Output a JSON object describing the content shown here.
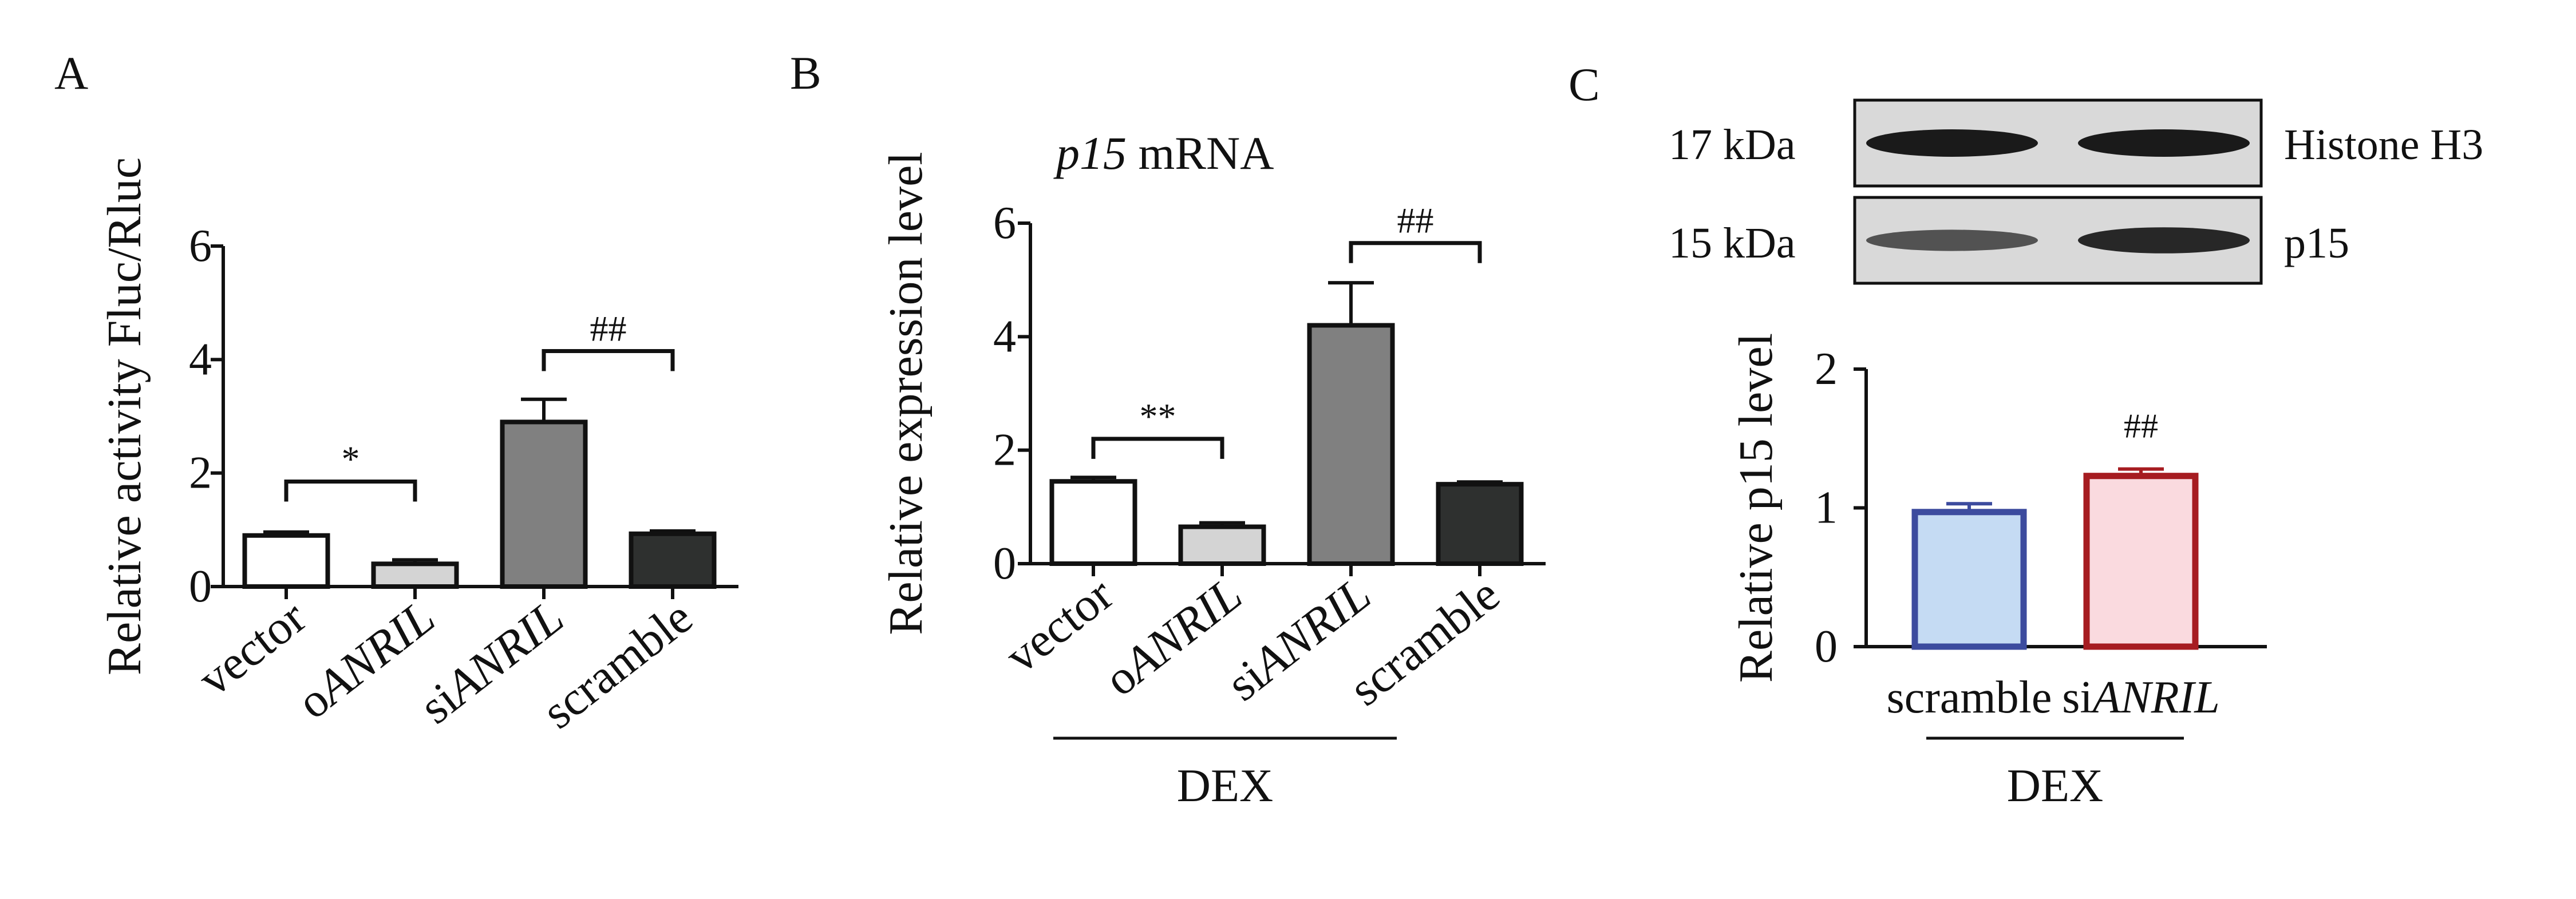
{
  "colors": {
    "axis": "#111111",
    "panelA": [
      "#ffffff",
      "#d4d4d4",
      "#808080",
      "#2e302f"
    ],
    "panelB": [
      "#ffffff",
      "#d4d4d4",
      "#808080",
      "#2e302f"
    ],
    "panelC_fill": [
      "#c5dbf3",
      "#fadadf"
    ],
    "panelC_edge": [
      "#3c4b9e",
      "#a61c21"
    ],
    "blot_bg": "#d9d9d9",
    "band": "#1a1a1a"
  },
  "panels": {
    "A": {
      "letter": "A"
    },
    "B": {
      "letter": "B",
      "title_italic": "p15",
      "title_rest": " mRNA",
      "group_label": "DEX"
    },
    "C": {
      "letter": "C",
      "group_label": "DEX",
      "blot": {
        "rows": [
          {
            "size": "17 kDa",
            "protein": "Histone H3",
            "intensity": [
              1.0,
              1.0
            ]
          },
          {
            "size": "15 kDa",
            "protein": "p15",
            "intensity": [
              0.55,
              0.9
            ]
          }
        ]
      }
    }
  },
  "chart_data": [
    {
      "type": "bar",
      "panel": "A",
      "categories": [
        {
          "prefix": "",
          "italic": "",
          "text": "vector"
        },
        {
          "prefix": "o",
          "italic": "ANRIL",
          "text": "oANRIL"
        },
        {
          "prefix": "si",
          "italic": "ANRIL",
          "text": "siANRIL"
        },
        {
          "prefix": "",
          "italic": "",
          "text": "scramble"
        }
      ],
      "values": [
        0.9,
        0.4,
        2.9,
        0.93
      ],
      "errors": [
        0.06,
        0.07,
        0.4,
        0.05
      ],
      "ylabel": "Relative activity Fluc/Rluc",
      "ylim": [
        0,
        6
      ],
      "yticks": [
        "0",
        "2",
        "4",
        "6"
      ],
      "significance": [
        {
          "from": 0,
          "to": 1,
          "label": "*",
          "level": 1.85
        },
        {
          "from": 2,
          "to": 3,
          "label": "##",
          "level": 4.15
        }
      ]
    },
    {
      "type": "bar",
      "panel": "B",
      "categories": [
        {
          "prefix": "",
          "italic": "",
          "text": "vector"
        },
        {
          "prefix": "o",
          "italic": "ANRIL",
          "text": "oANRIL"
        },
        {
          "prefix": "si",
          "italic": "ANRIL",
          "text": "siANRIL"
        },
        {
          "prefix": "",
          "italic": "",
          "text": "scramble"
        }
      ],
      "values": [
        1.45,
        0.65,
        4.2,
        1.4
      ],
      "errors": [
        0.07,
        0.07,
        0.75,
        0.04
      ],
      "ylabel": "Relative expression level",
      "ylim": [
        0,
        6
      ],
      "yticks": [
        "0",
        "2",
        "4",
        "6"
      ],
      "significance": [
        {
          "from": 0,
          "to": 1,
          "label": "**",
          "level": 2.2
        },
        {
          "from": 2,
          "to": 3,
          "label": "##",
          "level": 5.65
        }
      ]
    },
    {
      "type": "bar",
      "panel": "C",
      "categories": [
        {
          "prefix": "scramble",
          "italic": "",
          "text": "scramble"
        },
        {
          "prefix": "si",
          "italic": "ANRIL",
          "text": "siANRIL"
        }
      ],
      "values": [
        0.97,
        1.23
      ],
      "errors": [
        0.06,
        0.05
      ],
      "ylabel": "Relative p15 level",
      "ylim": [
        0,
        2
      ],
      "yticks": [
        "0",
        "1",
        "2"
      ],
      "annotations": [
        {
          "bar": 1,
          "label": "##"
        }
      ]
    }
  ]
}
